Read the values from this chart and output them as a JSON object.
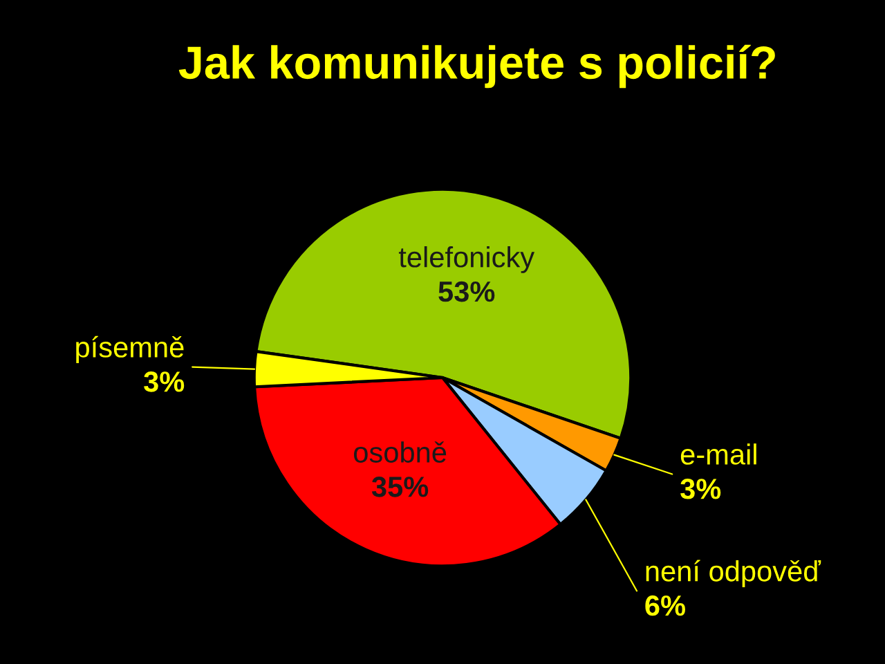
{
  "chart_data": {
    "type": "pie",
    "title": "Jak komunikujete s policií?",
    "categories": [
      "telefonicky",
      "e-mail",
      "není odpověď",
      "osobně",
      "písemně"
    ],
    "values": [
      53,
      3,
      6,
      35,
      3
    ],
    "value_labels": [
      "53%",
      "3%",
      "6%",
      "35%",
      "3%"
    ],
    "colors": [
      "#99cc00",
      "#ff9900",
      "#99ccff",
      "#ff0000",
      "#ffff00"
    ]
  }
}
